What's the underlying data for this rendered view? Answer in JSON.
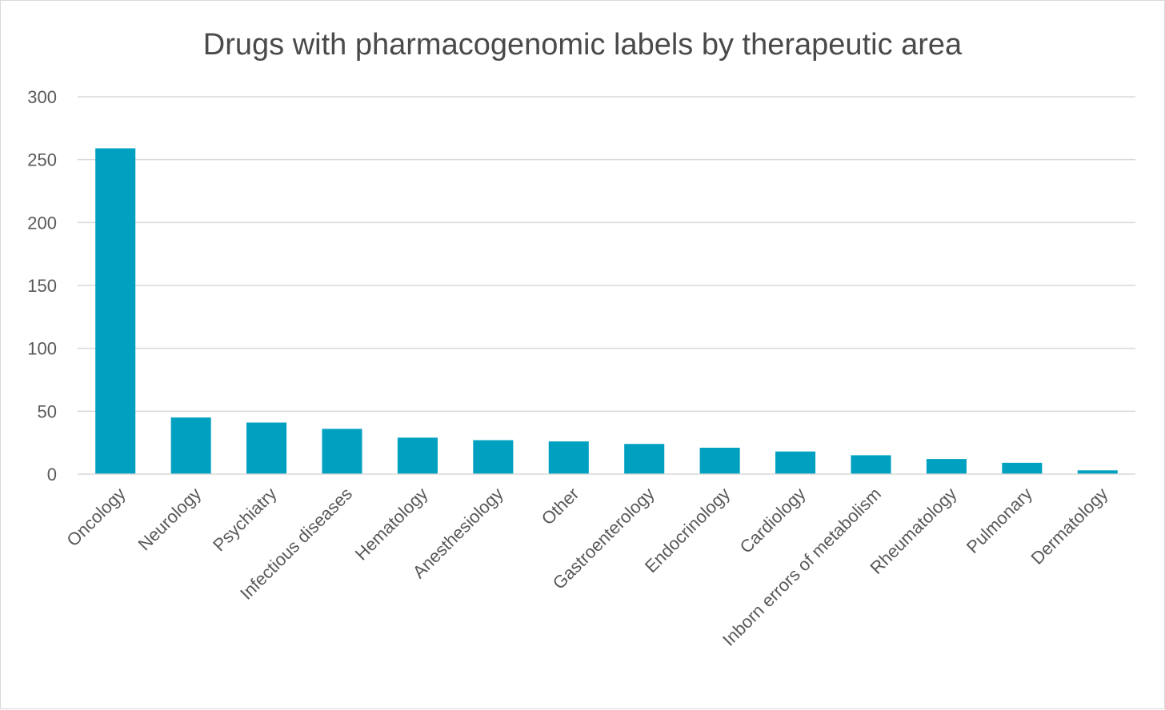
{
  "chart_data": {
    "type": "bar",
    "title": "Drugs with pharmacogenomic labels by therapeutic area",
    "xlabel": "",
    "ylabel": "",
    "categories": [
      "Oncology",
      "Neurology",
      "Psychiatry",
      "Infectious diseases",
      "Hematology",
      "Anesthesiology",
      "Other",
      "Gastroenterology",
      "Endocrinology",
      "Cardiology",
      "Inborn errors of metabolism",
      "Rheumatology",
      "Pulmonary",
      "Dermatology"
    ],
    "values": [
      259,
      45,
      41,
      36,
      29,
      27,
      26,
      24,
      21,
      18,
      15,
      12,
      9,
      3
    ],
    "ylim": [
      0,
      300
    ],
    "yticks": [
      0,
      50,
      100,
      150,
      200,
      250,
      300
    ],
    "grid": true,
    "legend": "none",
    "bar_color": "#00a0c0"
  }
}
